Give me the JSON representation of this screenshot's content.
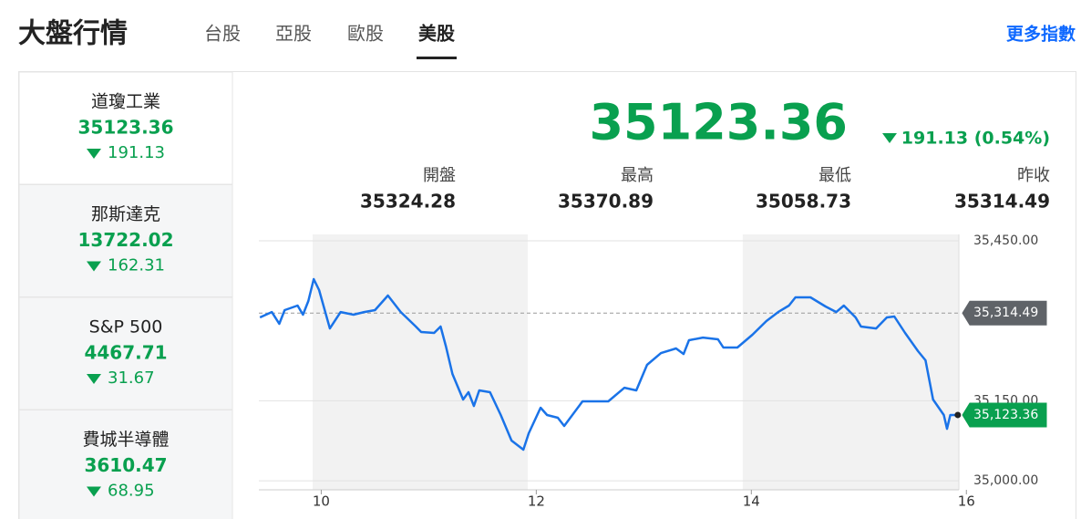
{
  "header": {
    "title": "大盤行情",
    "tabs": [
      "台股",
      "亞股",
      "歐股",
      "美股"
    ],
    "active_tab": 3,
    "more_link": "更多指數"
  },
  "indices": [
    {
      "name": "道瓊工業",
      "value": 35123.36,
      "change": 191.13
    },
    {
      "name": "那斯達克",
      "value": 13722.02,
      "change": 162.31
    },
    {
      "name": "S&P 500",
      "value": 4467.71,
      "change": 31.67
    },
    {
      "name": "費城半導體",
      "value": 3610.47,
      "change": 68.95
    }
  ],
  "selected_index": 0,
  "quote": {
    "value": 35123.36,
    "change_label": "191.13 (0.54%)",
    "stats": [
      {
        "label": "開盤",
        "value": 35324.28
      },
      {
        "label": "最高",
        "value": 35370.89
      },
      {
        "label": "最低",
        "value": 35058.73
      },
      {
        "label": "昨收",
        "value": 35314.49
      }
    ]
  },
  "chart_data": {
    "type": "line",
    "x": [
      9.43,
      9.54,
      9.61,
      9.66,
      9.78,
      9.83,
      9.88,
      9.93,
      9.98,
      10.08,
      10.18,
      10.3,
      10.4,
      10.5,
      10.62,
      10.74,
      10.88,
      10.93,
      11.05,
      11.11,
      11.16,
      11.22,
      11.32,
      11.37,
      11.42,
      11.47,
      11.57,
      11.67,
      11.77,
      11.88,
      11.93,
      12.04,
      12.1,
      12.2,
      12.26,
      12.43,
      12.54,
      12.67,
      12.82,
      12.93,
      13.03,
      13.16,
      13.3,
      13.37,
      13.42,
      13.55,
      13.69,
      13.74,
      13.87,
      14.01,
      14.14,
      14.25,
      14.35,
      14.41,
      14.55,
      14.69,
      14.79,
      14.86,
      14.97,
      15.02,
      15.16,
      15.26,
      15.33,
      15.43,
      15.55,
      15.62,
      15.69,
      15.79,
      15.82,
      15.85,
      15.92
    ],
    "series": [
      {
        "color": "#1a73e8",
        "values": [
          35306.3,
          35316.5,
          35294.3,
          35320.0,
          35328.5,
          35311.4,
          35337.1,
          35378.1,
          35357.6,
          35285.7,
          35316.5,
          35311.4,
          35316.5,
          35320.0,
          35347.3,
          35316.5,
          35289.2,
          35278.9,
          35277.2,
          35289.2,
          35251.5,
          35200.2,
          35152.3,
          35166.0,
          35140.3,
          35169.4,
          35166.0,
          35123.2,
          35075.3,
          35058.2,
          35089.0,
          35136.9,
          35123.2,
          35118.1,
          35102.7,
          35148.9,
          35148.9,
          35148.9,
          35174.5,
          35169.4,
          35217.3,
          35239.5,
          35248.1,
          35237.8,
          35263.5,
          35268.6,
          35265.2,
          35249.8,
          35249.8,
          35273.8,
          35299.4,
          35316.5,
          35328.5,
          35343.9,
          35343.9,
          35326.8,
          35316.5,
          35328.5,
          35306.3,
          35289.2,
          35285.7,
          35306.3,
          35308.0,
          35277.2,
          35243.0,
          35225.9,
          35152.3,
          35123.2,
          35097.5,
          35123.2,
          35123.36
        ]
      }
    ],
    "xlim": [
      9.42,
      15.93
    ],
    "ylim": [
      34983,
      35462
    ],
    "xticks": [
      10,
      12,
      14,
      16
    ],
    "yticks": [
      {
        "value": 35000,
        "label": "35,000.00"
      },
      {
        "value": 35150,
        "label": "35,150.00"
      },
      {
        "value": 35450,
        "label": "35,450.00"
      }
    ],
    "shaded_ranges": [
      [
        9.92,
        11.92
      ],
      [
        13.92,
        15.93
      ]
    ],
    "reference_line": {
      "value": 35314.49,
      "label": "35,314.49"
    },
    "last_label": {
      "value": 35123.36,
      "label": "35,123.36"
    }
  }
}
